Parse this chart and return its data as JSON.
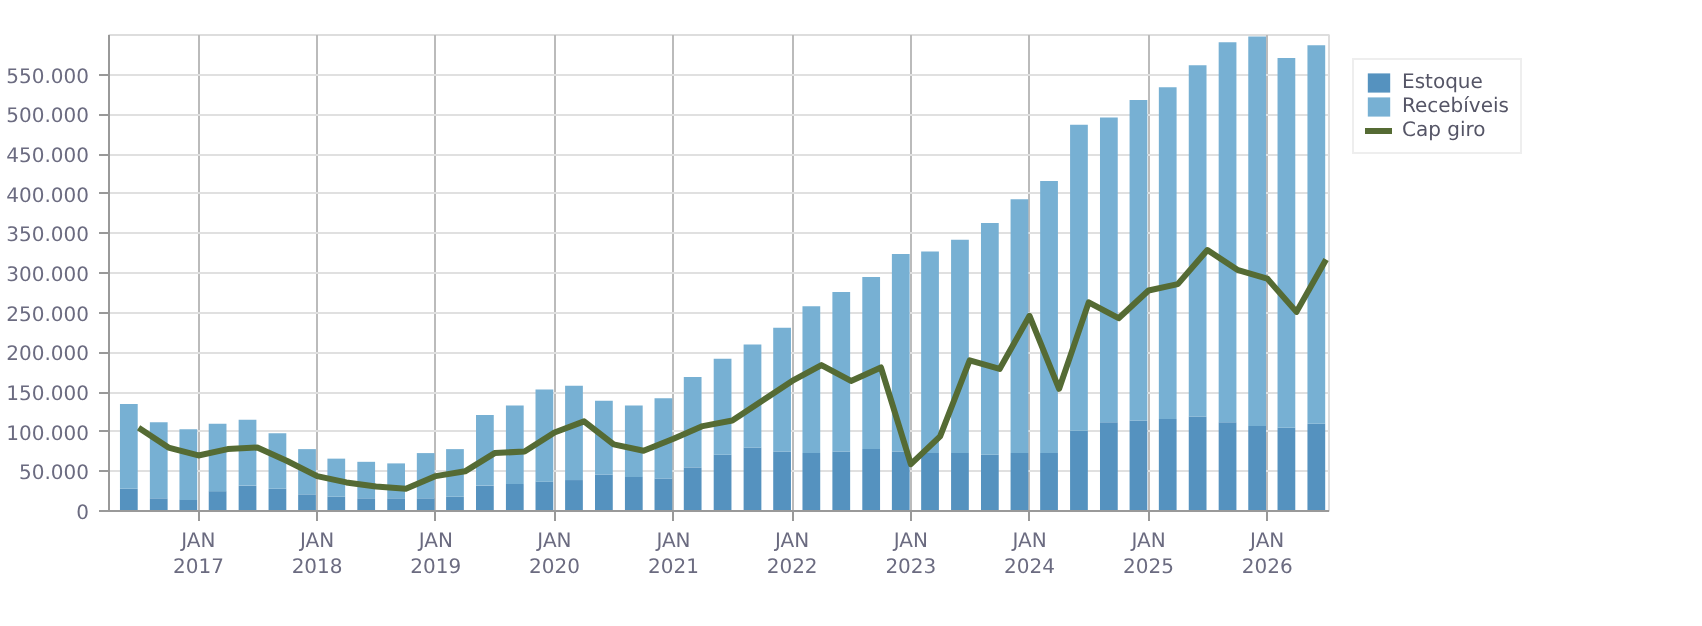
{
  "chart_data": {
    "type": "bar",
    "stacked": true,
    "grid": true,
    "legend": "top right",
    "x": [
      "2016-06",
      "2016-09",
      "2016-12",
      "2017-03",
      "2017-06",
      "2017-09",
      "2017-12",
      "2018-03",
      "2018-06",
      "2018-09",
      "2018-12",
      "2019-03",
      "2019-06",
      "2019-09",
      "2019-12",
      "2020-03",
      "2020-06",
      "2020-09",
      "2020-12",
      "2021-03",
      "2021-06",
      "2021-09",
      "2021-12",
      "2022-03",
      "2022-06",
      "2022-09",
      "2022-12",
      "2023-03",
      "2023-06",
      "2023-09",
      "2023-12",
      "2024-03",
      "2024-06",
      "2024-09",
      "2024-12",
      "2025-03",
      "2025-06",
      "2025-09",
      "2025-12",
      "2026-03",
      "2026-06"
    ],
    "series": [
      {
        "name": "Estoque",
        "color": "#5592bf",
        "values": [
          28000,
          16000,
          14000,
          25000,
          32000,
          28000,
          21000,
          18000,
          16000,
          16000,
          16000,
          18000,
          32000,
          34000,
          37000,
          39000,
          46000,
          43000,
          41000,
          55000,
          71000,
          80000,
          75000,
          73000,
          75000,
          78000,
          75000,
          73000,
          73000,
          71000,
          73000,
          73000,
          101000,
          112000,
          114000,
          116000,
          119000,
          112000,
          107000,
          105000,
          110000
        ]
      },
      {
        "name": "Recebíveis",
        "color": "#77b0d3",
        "values": [
          107000,
          96000,
          89000,
          85000,
          83000,
          70000,
          57000,
          48000,
          46000,
          44000,
          57000,
          60000,
          89000,
          99000,
          116000,
          119000,
          93000,
          90000,
          101000,
          114000,
          121000,
          130000,
          156000,
          185000,
          201000,
          217000,
          249000,
          254000,
          269000,
          292000,
          320000,
          343000,
          386000,
          384000,
          404000,
          418000,
          443000,
          479000,
          491000,
          466000,
          477000
        ]
      },
      {
        "name": "Cap giro",
        "type": "line",
        "color": "#556b34",
        "x": [
          "2016-07",
          "2016-10",
          "2017-01",
          "2017-04",
          "2017-07",
          "2017-10",
          "2018-01",
          "2018-04",
          "2018-07",
          "2018-10",
          "2019-01",
          "2019-04",
          "2019-07",
          "2019-10",
          "2020-01",
          "2020-04",
          "2020-07",
          "2020-10",
          "2021-01",
          "2021-04",
          "2021-07",
          "2021-10",
          "2022-01",
          "2022-04",
          "2022-07",
          "2022-10",
          "2023-01",
          "2023-04",
          "2023-07",
          "2023-10",
          "2024-01",
          "2024-04",
          "2024-07",
          "2024-10",
          "2025-01",
          "2025-04",
          "2025-07",
          "2025-10",
          "2026-01",
          "2026-04",
          "2026-07"
        ],
        "values": [
          105000,
          80000,
          70000,
          78000,
          80000,
          63000,
          44000,
          36000,
          31000,
          28000,
          44000,
          50000,
          73000,
          75000,
          99000,
          113000,
          84000,
          76000,
          91000,
          107000,
          114000,
          139000,
          164000,
          184000,
          164000,
          181000,
          59000,
          94000,
          190000,
          179000,
          246000,
          154000,
          263000,
          243000,
          278000,
          286000,
          329000,
          304000,
          293000,
          251000,
          317000
        ]
      }
    ],
    "xlim": [
      "2016-04-01",
      "2026-07-10"
    ],
    "xticks": [
      {
        "value": "2017-01",
        "label": "JAN\n2017"
      },
      {
        "value": "2018-01",
        "label": "JAN\n2018"
      },
      {
        "value": "2019-01",
        "label": "JAN\n2019"
      },
      {
        "value": "2020-01",
        "label": "JAN\n2020"
      },
      {
        "value": "2021-01",
        "label": "JAN\n2021"
      },
      {
        "value": "2022-01",
        "label": "JAN\n2022"
      },
      {
        "value": "2023-01",
        "label": "JAN\n2023"
      },
      {
        "value": "2024-01",
        "label": "JAN\n2024"
      },
      {
        "value": "2025-01",
        "label": "JAN\n2025"
      },
      {
        "value": "2026-01",
        "label": "JAN\n2026"
      }
    ],
    "ylim": [
      0,
      600000
    ],
    "yticks": [
      0,
      {
        "value": 50000,
        "label": "50.000"
      },
      {
        "value": 100000,
        "label": "100.000"
      },
      {
        "value": 150000,
        "label": "150.000"
      },
      {
        "value": 200000,
        "label": "200.000"
      },
      {
        "value": 250000,
        "label": "250.000"
      },
      {
        "value": 300000,
        "label": "300.000"
      },
      {
        "value": 350000,
        "label": "350.000"
      },
      {
        "value": 400000,
        "label": "400.000"
      },
      {
        "value": 450000,
        "label": "450.000"
      },
      {
        "value": 500000,
        "label": "500.000"
      },
      {
        "value": 550000,
        "label": "550.000"
      }
    ]
  }
}
